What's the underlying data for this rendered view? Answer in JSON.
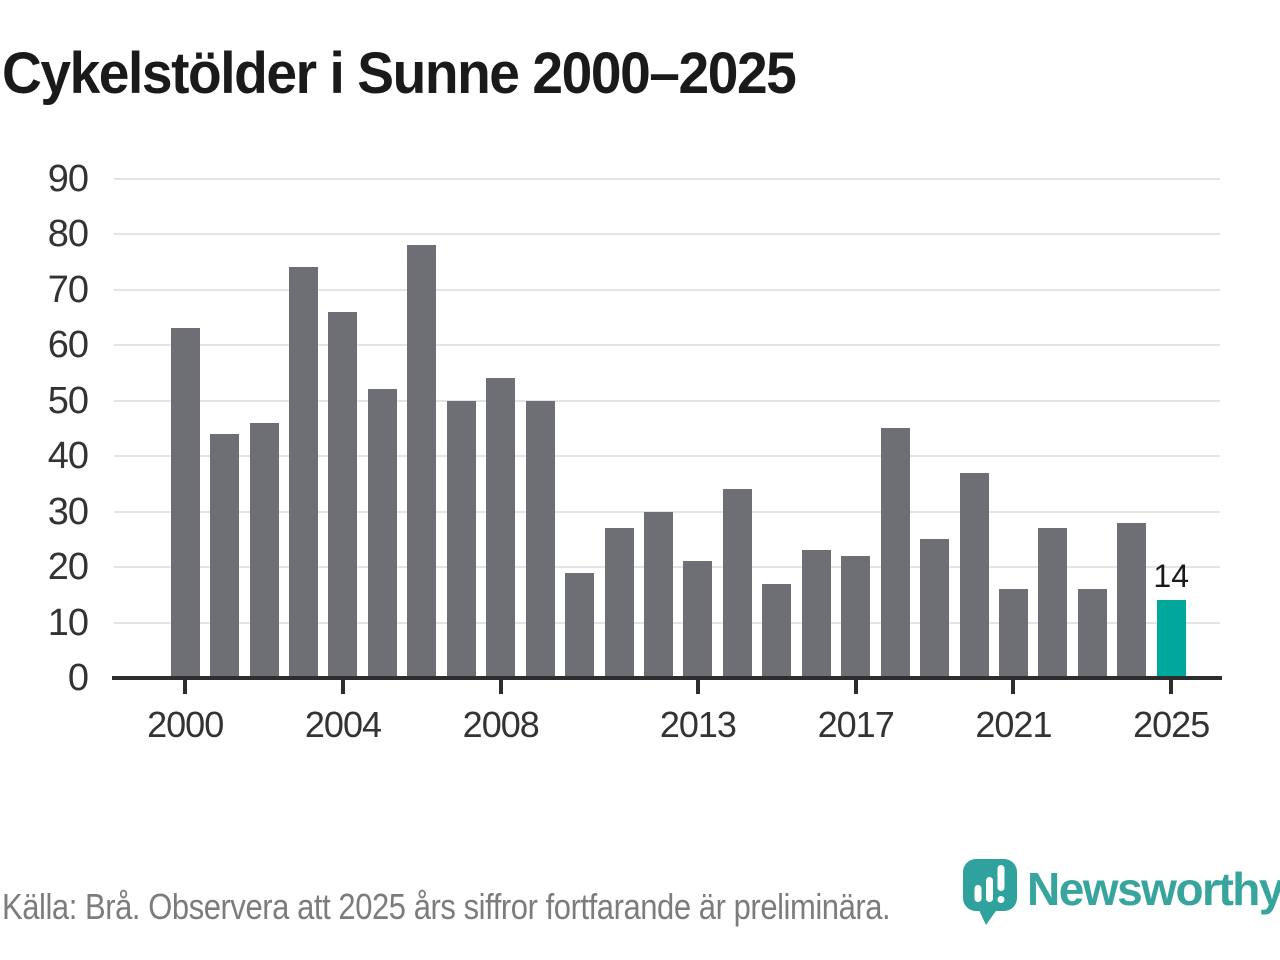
{
  "title": "Cykelstölder i Sunne 2000–2025",
  "footer": {
    "source_note": "Källa: Brå. Observera att 2025 års siffror fortfarande är preliminära."
  },
  "logo": {
    "text": "Newsworthy",
    "icon": "newsworthy-pin-barchart-icon"
  },
  "colors": {
    "bar": "#6e6e75",
    "highlight": "#00a79b",
    "logo_teal": "#38a49e",
    "gridline": "#e4e4e4",
    "axis": "#2d2d2d",
    "tick_label": "#333333",
    "title_text": "#1a1a1a",
    "footer_text": "#7c7c7c",
    "value_label": "#1a1a1a"
  },
  "chart_data": {
    "type": "bar",
    "title": "Cykelstölder i Sunne 2000–2025",
    "x": [
      2000,
      2001,
      2002,
      2003,
      2004,
      2005,
      2006,
      2007,
      2008,
      2009,
      2010,
      2011,
      2012,
      2013,
      2014,
      2015,
      2016,
      2017,
      2018,
      2019,
      2020,
      2021,
      2022,
      2023,
      2024,
      2025
    ],
    "values": [
      63,
      44,
      46,
      74,
      66,
      52,
      78,
      50,
      54,
      50,
      19,
      27,
      30,
      21,
      34,
      17,
      23,
      22,
      45,
      25,
      37,
      16,
      27,
      16,
      28,
      14
    ],
    "highlight_index": 25,
    "highlight_label": "14",
    "xlabel": "",
    "ylabel": "",
    "ylim": [
      0,
      90
    ],
    "yticks": [
      0,
      10,
      20,
      30,
      40,
      50,
      60,
      70,
      80,
      90
    ],
    "xticks": [
      2000,
      2004,
      2008,
      2013,
      2017,
      2021,
      2025
    ],
    "grid": true,
    "legend": false
  }
}
